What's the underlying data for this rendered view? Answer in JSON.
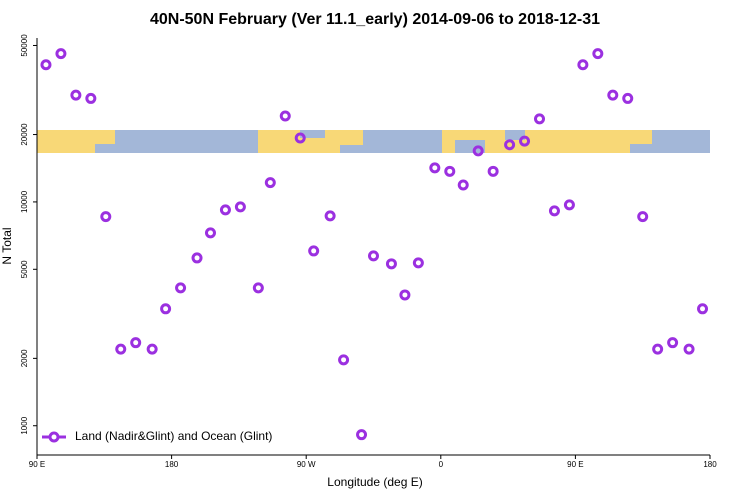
{
  "chart_data": {
    "type": "scatter",
    "title": "40N-50N February (Ver 11.1_early)   2014-09-06 to 2018-12-31",
    "xlabel": "Longitude (deg E)",
    "ylabel": "N Total",
    "xlim": [
      90,
      540
    ],
    "xticks": [
      {
        "value": 90,
        "label": "90 E"
      },
      180,
      {
        "value": 270,
        "label": "90 W"
      },
      {
        "value": 360,
        "label": "0"
      },
      {
        "value": 450,
        "label": "90 E"
      },
      {
        "value": 540,
        "label": "180"
      }
    ],
    "ylim": [
      740,
      54000
    ],
    "ylog": true,
    "yticks": [
      1000,
      2000,
      5000,
      10000,
      20000,
      50000
    ],
    "legend": "lower left",
    "series": [
      {
        "name": "Land (Nadir&Glint) and Ocean (Glint)",
        "color": "#9b30e0",
        "x": [
          96,
          106,
          116,
          126,
          136,
          146,
          156,
          167,
          176,
          186,
          197,
          206,
          216,
          226,
          238,
          246,
          256,
          266,
          275,
          286,
          295,
          307,
          315,
          327,
          336,
          345,
          356,
          366,
          375,
          385,
          395,
          406,
          416,
          426,
          436,
          446,
          455,
          465,
          475,
          485,
          495,
          505,
          515,
          526,
          535
        ],
        "values": [
          41000,
          46000,
          30000,
          29000,
          8600,
          2200,
          2350,
          2200,
          3330,
          4130,
          5620,
          7270,
          9210,
          9500,
          4130,
          12200,
          24200,
          19300,
          6040,
          8660,
          1970,
          912,
          5740,
          5290,
          3840,
          5340,
          14200,
          13700,
          11900,
          16900,
          13700,
          18000,
          18700,
          23500,
          9120,
          9700,
          41000,
          46000,
          30000,
          29000,
          8600,
          2200,
          2350,
          2200,
          3330
        ]
      }
    ]
  }
}
